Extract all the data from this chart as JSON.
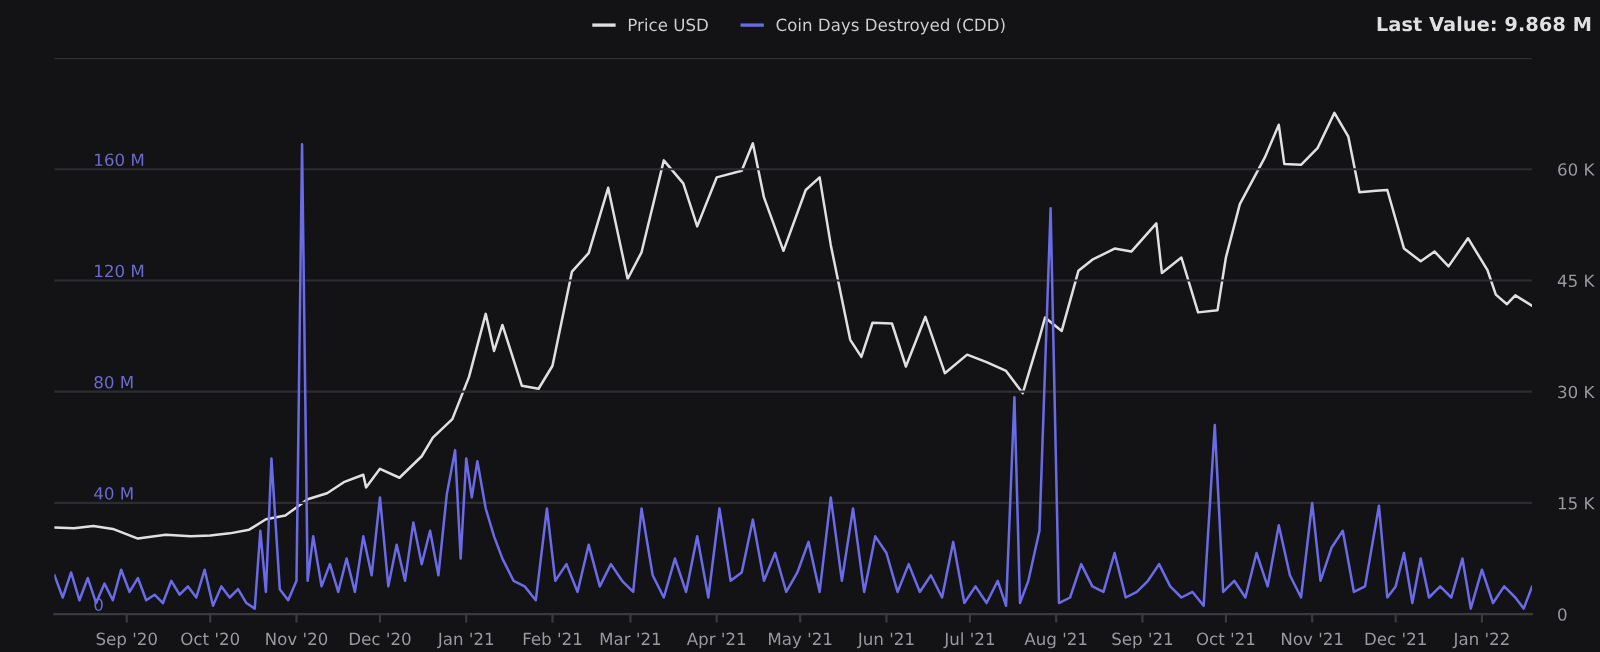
{
  "chart_data": {
    "type": "line",
    "xlim": [
      "2020-08-06",
      "2022-01-19"
    ],
    "xticks": [
      {
        "value": "2020-09-01",
        "label": "Sep '20"
      },
      {
        "value": "2020-10-01",
        "label": "Oct '20"
      },
      {
        "value": "2020-11-01",
        "label": "Nov '20"
      },
      {
        "value": "2020-12-01",
        "label": "Dec '20"
      },
      {
        "value": "2021-01-01",
        "label": "Jan '21"
      },
      {
        "value": "2021-02-01",
        "label": "Feb '21"
      },
      {
        "value": "2021-03-01",
        "label": "Mar '21"
      },
      {
        "value": "2021-04-01",
        "label": "Apr '21"
      },
      {
        "value": "2021-05-01",
        "label": "May '21"
      },
      {
        "value": "2021-06-01",
        "label": "Jun '21"
      },
      {
        "value": "2021-07-01",
        "label": "Jul '21"
      },
      {
        "value": "2021-08-01",
        "label": "Aug '21"
      },
      {
        "value": "2021-09-01",
        "label": "Sep '21"
      },
      {
        "value": "2021-10-01",
        "label": "Oct '21"
      },
      {
        "value": "2021-11-01",
        "label": "Nov '21"
      },
      {
        "value": "2021-12-01",
        "label": "Dec '21"
      },
      {
        "value": "2022-01-01",
        "label": "Jan '22"
      }
    ],
    "ylim": [
      0,
      200
    ],
    "yticks": [
      {
        "value": 0,
        "label": "0"
      },
      {
        "value": 40,
        "label": "40 M"
      },
      {
        "value": 80,
        "label": "80 M"
      },
      {
        "value": 120,
        "label": "120 M"
      },
      {
        "value": 160,
        "label": "160 M"
      },
      {
        "value": 200,
        "label": null
      }
    ],
    "y2lim": [
      0,
      75
    ],
    "y2ticks": [
      {
        "value": 0,
        "label": "0"
      },
      {
        "value": 15,
        "label": "15 K"
      },
      {
        "value": 30,
        "label": "30 K"
      },
      {
        "value": 45,
        "label": "45 K"
      },
      {
        "value": 60,
        "label": "60 K"
      },
      {
        "value": 75,
        "label": null
      }
    ],
    "grid": "y",
    "legend": "top",
    "annotations": [
      "Last Value: 9.868 M"
    ],
    "series": [
      {
        "name": "Price USD",
        "axis": "y2",
        "color": "#e0e0e0",
        "x": [
          "2020-08-06",
          "2020-08-13",
          "2020-08-20",
          "2020-08-27",
          "2020-09-05",
          "2020-09-15",
          "2020-09-24",
          "2020-10-01",
          "2020-10-08",
          "2020-10-15",
          "2020-10-21",
          "2020-10-28",
          "2020-11-05",
          "2020-11-12",
          "2020-11-18",
          "2020-11-25",
          "2020-11-26",
          "2020-12-01",
          "2020-12-08",
          "2020-12-16",
          "2020-12-20",
          "2020-12-27",
          "2021-01-02",
          "2021-01-08",
          "2021-01-11",
          "2021-01-14",
          "2021-01-21",
          "2021-01-27",
          "2021-02-01",
          "2021-02-08",
          "2021-02-14",
          "2021-02-21",
          "2021-02-28",
          "2021-03-05",
          "2021-03-13",
          "2021-03-20",
          "2021-03-25",
          "2021-04-01",
          "2021-04-10",
          "2021-04-14",
          "2021-04-18",
          "2021-04-25",
          "2021-05-03",
          "2021-05-08",
          "2021-05-12",
          "2021-05-19",
          "2021-05-23",
          "2021-05-27",
          "2021-06-03",
          "2021-06-08",
          "2021-06-15",
          "2021-06-22",
          "2021-06-30",
          "2021-07-07",
          "2021-07-14",
          "2021-07-20",
          "2021-07-26",
          "2021-07-28",
          "2021-08-03",
          "2021-08-09",
          "2021-08-14",
          "2021-08-22",
          "2021-08-28",
          "2021-09-06",
          "2021-09-08",
          "2021-09-15",
          "2021-09-21",
          "2021-09-28",
          "2021-10-01",
          "2021-10-06",
          "2021-10-15",
          "2021-10-20",
          "2021-10-22",
          "2021-10-28",
          "2021-11-03",
          "2021-11-09",
          "2021-11-14",
          "2021-11-18",
          "2021-11-24",
          "2021-11-28",
          "2021-12-04",
          "2021-12-10",
          "2021-12-15",
          "2021-12-20",
          "2021-12-27",
          "2022-01-03",
          "2022-01-06",
          "2022-01-10",
          "2022-01-13",
          "2022-01-19"
        ],
        "values": [
          11.7,
          11.6,
          11.9,
          11.5,
          10.2,
          10.7,
          10.5,
          10.6,
          10.9,
          11.4,
          12.8,
          13.3,
          15.5,
          16.3,
          17.8,
          18.8,
          17.1,
          19.6,
          18.4,
          21.3,
          23.8,
          26.3,
          32.0,
          40.5,
          35.5,
          39.0,
          30.8,
          30.4,
          33.5,
          46.2,
          48.7,
          57.5,
          45.2,
          48.8,
          61.2,
          58.1,
          52.3,
          58.9,
          59.8,
          63.5,
          56.2,
          49.0,
          57.2,
          58.9,
          49.8,
          37.0,
          34.7,
          39.3,
          39.2,
          33.4,
          40.1,
          32.5,
          35.0,
          34.0,
          32.8,
          29.8,
          37.3,
          40.0,
          38.2,
          46.3,
          47.8,
          49.3,
          48.9,
          52.7,
          46.0,
          48.1,
          40.7,
          41.0,
          48.1,
          55.3,
          61.6,
          66.0,
          60.7,
          60.6,
          62.9,
          67.6,
          64.4,
          56.9,
          57.1,
          57.2,
          49.3,
          47.6,
          48.9,
          46.9,
          50.7,
          46.4,
          43.1,
          41.8,
          43.0,
          41.6
        ]
      },
      {
        "name": "Coin Days Destroyed (CDD)",
        "axis": "y",
        "color": "#6b6be8",
        "x": [
          "2020-08-06",
          "2020-08-09",
          "2020-08-12",
          "2020-08-15",
          "2020-08-18",
          "2020-08-21",
          "2020-08-24",
          "2020-08-27",
          "2020-08-30",
          "2020-09-02",
          "2020-09-05",
          "2020-09-08",
          "2020-09-11",
          "2020-09-14",
          "2020-09-17",
          "2020-09-20",
          "2020-09-23",
          "2020-09-26",
          "2020-09-29",
          "2020-10-02",
          "2020-10-05",
          "2020-10-08",
          "2020-10-11",
          "2020-10-14",
          "2020-10-17",
          "2020-10-19",
          "2020-10-21",
          "2020-10-23",
          "2020-10-26",
          "2020-10-29",
          "2020-11-01",
          "2020-11-03",
          "2020-11-05",
          "2020-11-07",
          "2020-11-10",
          "2020-11-13",
          "2020-11-16",
          "2020-11-19",
          "2020-11-22",
          "2020-11-25",
          "2020-11-28",
          "2020-12-01",
          "2020-12-04",
          "2020-12-07",
          "2020-12-10",
          "2020-12-13",
          "2020-12-16",
          "2020-12-19",
          "2020-12-22",
          "2020-12-25",
          "2020-12-28",
          "2020-12-30",
          "2021-01-01",
          "2021-01-03",
          "2021-01-05",
          "2021-01-08",
          "2021-01-11",
          "2021-01-14",
          "2021-01-18",
          "2021-01-22",
          "2021-01-26",
          "2021-01-30",
          "2021-02-02",
          "2021-02-06",
          "2021-02-10",
          "2021-02-14",
          "2021-02-18",
          "2021-02-22",
          "2021-02-26",
          "2021-03-02",
          "2021-03-05",
          "2021-03-09",
          "2021-03-13",
          "2021-03-17",
          "2021-03-21",
          "2021-03-25",
          "2021-03-29",
          "2021-04-02",
          "2021-04-06",
          "2021-04-10",
          "2021-04-14",
          "2021-04-18",
          "2021-04-22",
          "2021-04-26",
          "2021-04-30",
          "2021-05-04",
          "2021-05-08",
          "2021-05-12",
          "2021-05-16",
          "2021-05-20",
          "2021-05-24",
          "2021-05-28",
          "2021-06-01",
          "2021-06-05",
          "2021-06-09",
          "2021-06-13",
          "2021-06-17",
          "2021-06-21",
          "2021-06-25",
          "2021-06-29",
          "2021-07-03",
          "2021-07-07",
          "2021-07-11",
          "2021-07-14",
          "2021-07-17",
          "2021-07-19",
          "2021-07-22",
          "2021-07-26",
          "2021-07-30",
          "2021-08-02",
          "2021-08-06",
          "2021-08-10",
          "2021-08-14",
          "2021-08-18",
          "2021-08-22",
          "2021-08-26",
          "2021-08-30",
          "2021-09-03",
          "2021-09-07",
          "2021-09-11",
          "2021-09-15",
          "2021-09-19",
          "2021-09-23",
          "2021-09-27",
          "2021-09-30",
          "2021-10-04",
          "2021-10-08",
          "2021-10-12",
          "2021-10-16",
          "2021-10-20",
          "2021-10-24",
          "2021-10-28",
          "2021-11-01",
          "2021-11-04",
          "2021-11-08",
          "2021-11-12",
          "2021-11-16",
          "2021-11-20",
          "2021-11-25",
          "2021-11-28",
          "2021-12-01",
          "2021-12-04",
          "2021-12-07",
          "2021-12-10",
          "2021-12-13",
          "2021-12-17",
          "2021-12-21",
          "2021-12-25",
          "2021-12-28",
          "2022-01-01",
          "2022-01-05",
          "2022-01-09",
          "2022-01-13",
          "2022-01-16",
          "2022-01-19"
        ],
        "values": [
          14,
          6,
          15,
          5,
          13,
          4,
          11,
          5,
          16,
          8,
          13,
          5,
          7,
          4,
          12,
          7,
          10,
          6,
          16,
          3,
          10,
          6,
          9,
          4,
          2,
          30,
          8,
          56,
          9,
          5,
          12,
          169,
          12,
          28,
          10,
          18,
          8,
          20,
          8,
          28,
          14,
          42,
          10,
          25,
          12,
          33,
          18,
          30,
          14,
          43,
          59,
          20,
          56,
          42,
          55,
          38,
          28,
          20,
          12,
          10,
          5,
          38,
          12,
          18,
          8,
          25,
          10,
          18,
          12,
          8,
          38,
          14,
          6,
          20,
          8,
          28,
          6,
          38,
          12,
          15,
          34,
          12,
          22,
          8,
          15,
          26,
          8,
          42,
          12,
          38,
          8,
          28,
          22,
          8,
          18,
          8,
          14,
          6,
          26,
          4,
          10,
          4,
          12,
          3,
          78,
          4,
          12,
          30,
          146,
          4,
          6,
          18,
          10,
          8,
          22,
          6,
          8,
          12,
          18,
          10,
          6,
          8,
          3,
          68,
          8,
          12,
          6,
          22,
          10,
          32,
          14,
          6,
          40,
          12,
          24,
          30,
          8,
          10,
          39,
          6,
          10,
          22,
          4,
          20,
          6,
          10,
          6,
          20,
          2,
          16,
          4,
          10,
          6,
          2,
          9.868
        ]
      }
    ]
  }
}
